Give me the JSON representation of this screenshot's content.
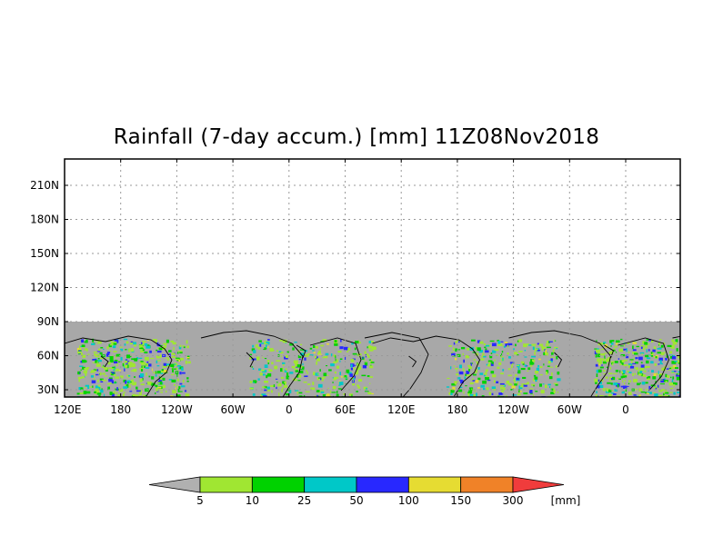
{
  "title": "Rainfall (7-day accum.) [mm] 11Z08Nov2018",
  "map": {
    "lat_labels": [
      "210N",
      "180N",
      "150N",
      "120N",
      "90N",
      "60N",
      "30N"
    ],
    "lon_labels": [
      "120E",
      "180",
      "120W",
      "60W",
      "0",
      "60E",
      "120E",
      "180",
      "120W",
      "60W",
      "0"
    ],
    "grid": true,
    "land_mask_color": "#a8a8a8",
    "coastline_color": "#000000"
  },
  "colorbar": {
    "unit_label": "[mm]",
    "levels": [
      "5",
      "10",
      "25",
      "50",
      "100",
      "150",
      "300"
    ],
    "colors": [
      "#b0b0b0",
      "#a0e632",
      "#00d200",
      "#00c8c8",
      "#2828ff",
      "#e6dc32",
      "#f08228",
      "#f03c3c"
    ]
  }
}
